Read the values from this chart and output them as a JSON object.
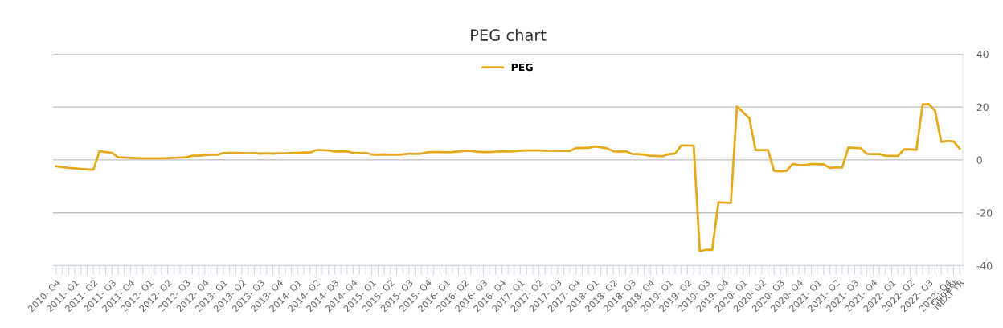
{
  "chart_data": {
    "type": "line",
    "title": "PEG chart",
    "categories": [
      "2010- Q4",
      null,
      null,
      "2011- Q1",
      null,
      null,
      "2011- Q2",
      null,
      null,
      "2011- Q3",
      null,
      null,
      "2011- Q4",
      null,
      null,
      "2012- Q1",
      null,
      null,
      "2012- Q2",
      null,
      null,
      "2012- Q3",
      null,
      null,
      "2012- Q4",
      null,
      null,
      "2013- Q1",
      null,
      null,
      "2013- Q2",
      null,
      null,
      "2013- Q3",
      null,
      null,
      "2013- Q4",
      null,
      null,
      "2014- Q1",
      null,
      null,
      "2014- Q2",
      null,
      null,
      "2014- Q3",
      null,
      null,
      "2014- Q4",
      null,
      null,
      "2015- Q1",
      null,
      null,
      "2015- Q2",
      null,
      null,
      "2015- Q3",
      null,
      null,
      "2015- Q4",
      null,
      null,
      "2016- Q1",
      null,
      null,
      "2016- Q2",
      null,
      null,
      "2016- Q3",
      null,
      null,
      "2016- Q4",
      null,
      null,
      "2017- Q1",
      null,
      null,
      "2017- Q2",
      null,
      null,
      "2017- Q3",
      null,
      null,
      "2017- Q4",
      null,
      null,
      "2018- Q1",
      null,
      null,
      "2018- Q2",
      null,
      null,
      "2018- Q3",
      null,
      null,
      "2018- Q4",
      null,
      null,
      "2019- Q1",
      null,
      null,
      "2019- Q2",
      null,
      null,
      "2019- Q3",
      null,
      null,
      "2019- Q4",
      null,
      null,
      "2020- Q1",
      null,
      null,
      "2020- Q2",
      null,
      null,
      "2020- Q3",
      null,
      null,
      "2020- Q4",
      null,
      null,
      "2021- Q1",
      null,
      null,
      "2021- Q2",
      null,
      null,
      "2021- Q3",
      null,
      null,
      "2021- Q4",
      null,
      null,
      "2022- Q1",
      null,
      null,
      "2022- Q2",
      null,
      null,
      "2022- Q3",
      null,
      null,
      "2022- Q4",
      "Current",
      "NEXT YR"
    ],
    "series": [
      {
        "name": "PEG",
        "color": "#e5a91a",
        "values": [
          -2.4,
          -2.7,
          -3.0,
          -3.2,
          -3.4,
          -3.6,
          -3.7,
          3.3,
          3.0,
          2.7,
          1.0,
          0.9,
          0.8,
          0.7,
          0.6,
          0.6,
          0.6,
          0.6,
          0.7,
          0.8,
          0.9,
          1.0,
          1.6,
          1.6,
          1.8,
          2.0,
          2.0,
          2.6,
          2.7,
          2.7,
          2.6,
          2.5,
          2.6,
          2.4,
          2.5,
          2.4,
          2.5,
          2.5,
          2.6,
          2.7,
          2.8,
          2.8,
          3.7,
          3.7,
          3.6,
          3.2,
          3.3,
          3.2,
          2.7,
          2.6,
          2.7,
          2.1,
          2.0,
          2.1,
          2.0,
          2.0,
          2.1,
          2.4,
          2.3,
          2.4,
          2.9,
          3.0,
          3.0,
          2.9,
          3.0,
          3.2,
          3.4,
          3.4,
          3.1,
          3.0,
          3.0,
          3.1,
          3.3,
          3.2,
          3.3,
          3.5,
          3.6,
          3.6,
          3.6,
          3.5,
          3.5,
          3.4,
          3.4,
          3.4,
          4.5,
          4.6,
          4.6,
          5.1,
          4.8,
          4.4,
          3.3,
          3.1,
          3.3,
          2.3,
          2.2,
          2.0,
          1.5,
          1.5,
          1.4,
          2.2,
          2.4,
          5.5,
          5.5,
          5.4,
          -34.5,
          -34,
          -34,
          -16,
          -16.2,
          -16.3,
          20.2,
          18.0,
          15.8,
          3.7,
          3.7,
          3.7,
          -4.2,
          -4.3,
          -4.2,
          -1.5,
          -2.0,
          -2.0,
          -1.6,
          -1.6,
          -1.7,
          -3.0,
          -2.9,
          -2.9,
          4.7,
          4.6,
          4.4,
          2.3,
          2.2,
          2.2,
          1.6,
          1.5,
          1.5,
          4.0,
          4.0,
          3.8,
          21.0,
          21.1,
          18.6,
          6.8,
          7.2,
          7.0,
          4.3
        ]
      }
    ],
    "ylim": [
      -40,
      40
    ],
    "yticks": [
      -40,
      -20,
      0,
      20,
      40
    ],
    "grid": "y",
    "legend": "top"
  }
}
